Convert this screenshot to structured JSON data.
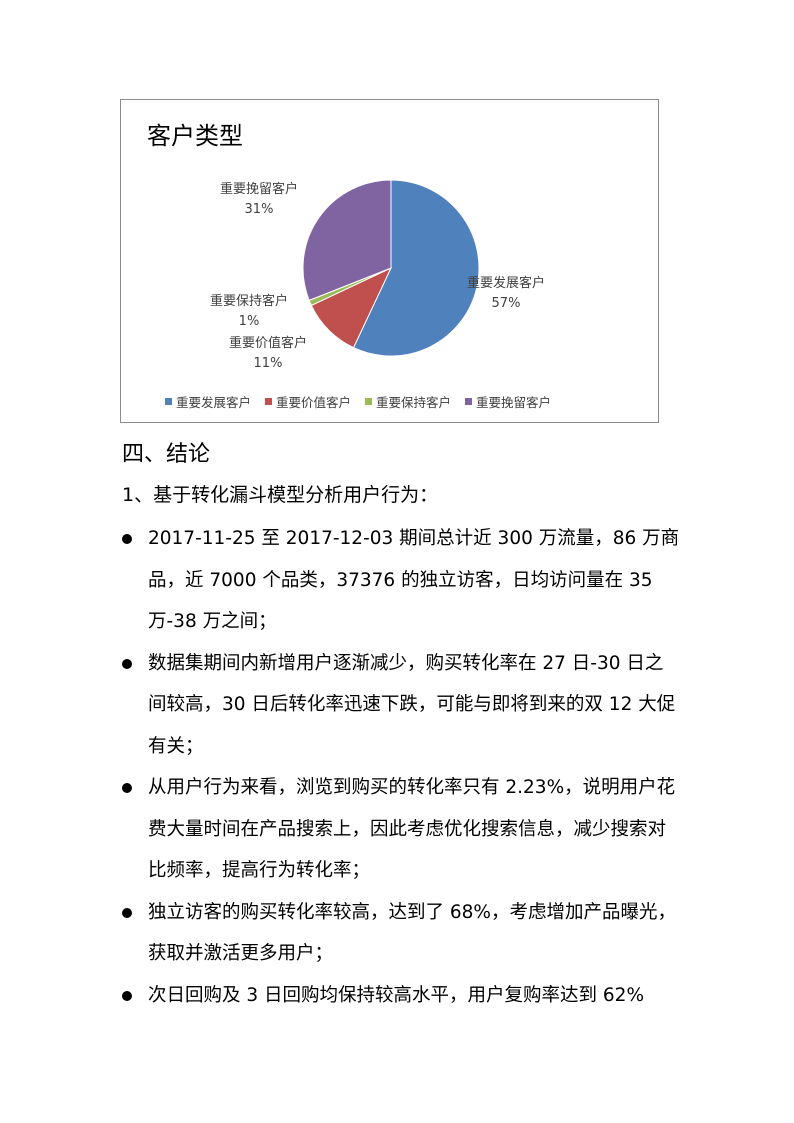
{
  "chart_data": {
    "type": "pie",
    "title": "客户类型",
    "categories": [
      "重要发展客户",
      "重要价值客户",
      "重要保持客户",
      "重要挽留客户"
    ],
    "values": [
      57,
      11,
      1,
      31
    ],
    "value_labels": [
      "57%",
      "11%",
      "1%",
      "31%"
    ],
    "colors": [
      "#4f81bd",
      "#c0504d",
      "#9bbb59",
      "#8064a2"
    ],
    "legend_position": "bottom"
  },
  "section": {
    "heading": "四、结论",
    "subheading": "1、基于转化漏斗模型分析用户行为："
  },
  "bullets": [
    "2017-11-25 至 2017-12-03 期间总计近 300 万流量，86 万商品，近 7000 个品类，37376 的独立访客，日均访问量在 35 万-38 万之间；",
    "数据集期间内新增用户逐渐减少，购买转化率在 27 日-30 日之间较高，30 日后转化率迅速下跌，可能与即将到来的双 12 大促有关；",
    "从用户行为来看，浏览到购买的转化率只有 2.23%，说明用户花费大量时间在产品搜索上，因此考虑优化搜索信息，减少搜索对比频率，提高行为转化率；",
    "独立访客的购买转化率较高，达到了 68%，考虑增加产品曝光，获取并激活更多用户；",
    "次日回购及 3 日回购均保持较高水平，用户复购率达到 62%"
  ]
}
